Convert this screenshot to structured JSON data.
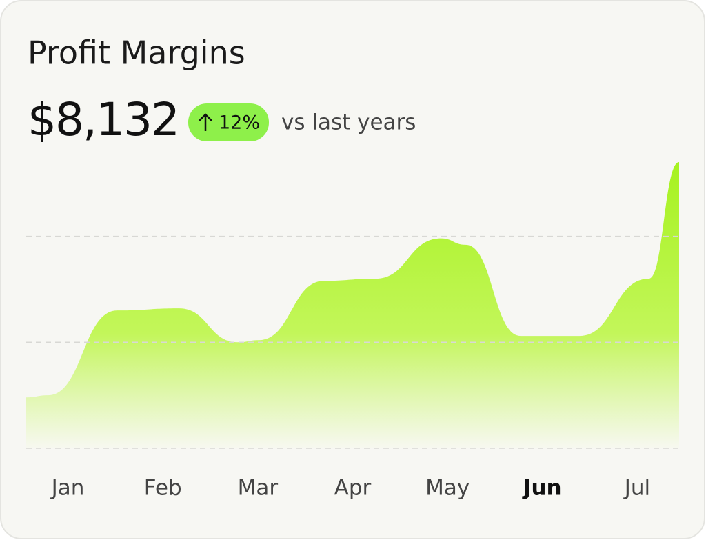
{
  "chart_data": {
    "type": "area",
    "title": "Profit Margins",
    "total": "$8,132",
    "change": "12%",
    "comparison": "vs last years",
    "x": [
      -0.44,
      -0.21,
      0.52,
      1.17,
      1.79,
      2.01,
      2.7,
      3.24,
      3.93,
      4.19,
      4.77,
      5.39,
      6.12,
      6.44
    ],
    "values": [
      24,
      25,
      65,
      66,
      50,
      51,
      79,
      80,
      99,
      96,
      53,
      53,
      80,
      135
    ],
    "color": "#b2f531",
    "xlim": [
      -0.44,
      6.44
    ],
    "ylim": [
      0,
      135
    ],
    "xticks": [
      {
        "value": 0,
        "label": "Jan"
      },
      {
        "value": 1,
        "label": "Feb"
      },
      {
        "value": 2,
        "label": "Mar"
      },
      {
        "value": 3,
        "label": "Apr"
      },
      {
        "value": 4,
        "label": "May"
      },
      {
        "value": 5,
        "label": "Jun"
      },
      {
        "value": 6,
        "label": "Jul"
      }
    ],
    "active_tick": 5,
    "gridlines": [
      0,
      50,
      100
    ]
  }
}
